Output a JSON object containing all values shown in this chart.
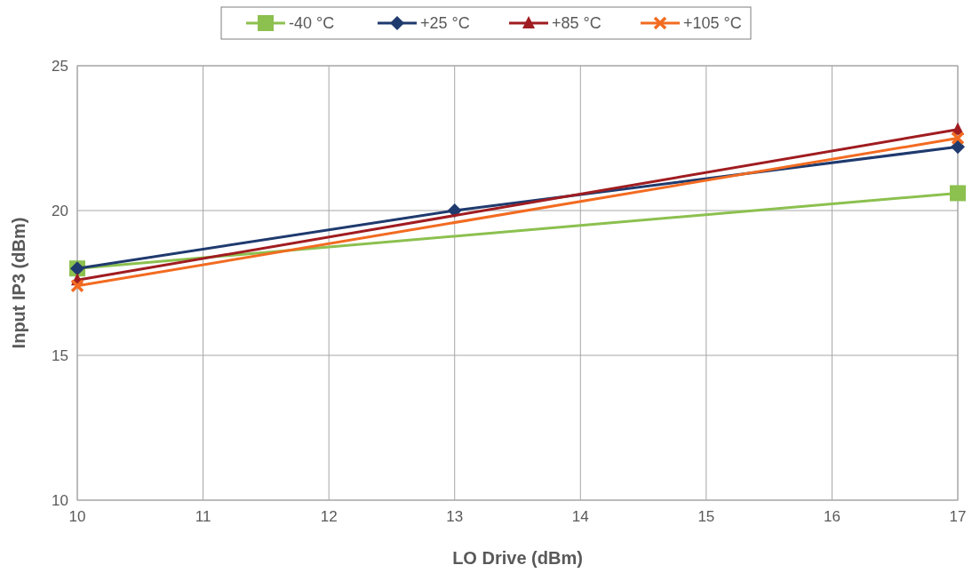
{
  "chart_data": {
    "type": "line",
    "xlabel": "LO Drive (dBm)",
    "ylabel": "Input IP3 (dBm)",
    "xlim": [
      10,
      17
    ],
    "xticks": [
      10,
      11,
      12,
      13,
      14,
      15,
      16,
      17
    ],
    "ylim": [
      10,
      25
    ],
    "yticks": [
      10,
      15,
      20,
      25
    ],
    "grid": true,
    "legend": "top",
    "series": [
      {
        "name": "-40 °C",
        "color": "#8cc04f",
        "marker": "square",
        "x": [
          10,
          17
        ],
        "values": [
          18.0,
          20.6
        ]
      },
      {
        "name": "+25 °C",
        "color": "#1f3a6e",
        "marker": "diamond",
        "x": [
          10,
          13,
          17
        ],
        "values": [
          18.0,
          20.0,
          22.2
        ]
      },
      {
        "name": "+85 °C",
        "color": "#a01c20",
        "marker": "triangle",
        "x": [
          10,
          17
        ],
        "values": [
          17.6,
          22.8
        ]
      },
      {
        "name": "+105 °C",
        "color": "#f26b21",
        "marker": "cross",
        "x": [
          10,
          17
        ],
        "values": [
          17.4,
          22.5
        ]
      }
    ]
  }
}
